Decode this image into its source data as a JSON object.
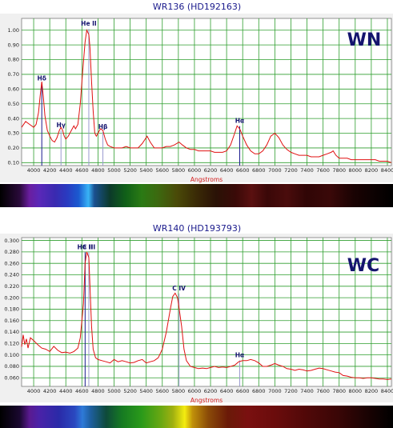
{
  "colors": {
    "grid": "#2e9e2e",
    "spectrum": "#e01010",
    "marker": "#1a1a8c",
    "faint_marker": "#9a9acf",
    "frame": "#f0f0f0"
  },
  "chart_data": [
    {
      "type": "line",
      "title": "WR136 (HD192163)",
      "class_label": "WN",
      "xlabel": "Angstroms",
      "ylabel": "",
      "xlim": [
        3850,
        8450
      ],
      "ylim": [
        0.08,
        1.08
      ],
      "x_ticks": [
        4000,
        4200,
        4400,
        4600,
        4800,
        5000,
        5200,
        5400,
        5600,
        5800,
        6000,
        6200,
        6400,
        6600,
        6800,
        7000,
        7200,
        7400,
        7600,
        7800,
        8000,
        8200,
        8400
      ],
      "y_ticks": [
        0.1,
        0.2,
        0.3,
        0.4,
        0.5,
        0.6,
        0.7,
        0.8,
        0.9,
        1.0
      ],
      "tick_decimals": 2,
      "grid": true,
      "series": [
        {
          "x": [
            3850,
            3900,
            3950,
            4000,
            4030,
            4060,
            4080,
            4101,
            4120,
            4140,
            4170,
            4200,
            4230,
            4260,
            4290,
            4320,
            4340,
            4360,
            4380,
            4400,
            4430,
            4470,
            4500,
            4520,
            4550,
            4580,
            4610,
            4640,
            4660,
            4686,
            4700,
            4720,
            4740,
            4760,
            4780,
            4800,
            4830,
            4861,
            4890,
            4920,
            4950,
            5000,
            5050,
            5100,
            5150,
            5200,
            5250,
            5300,
            5350,
            5411,
            5450,
            5500,
            5550,
            5600,
            5650,
            5700,
            5750,
            5808,
            5850,
            5900,
            5950,
            6000,
            6050,
            6100,
            6150,
            6200,
            6250,
            6300,
            6350,
            6400,
            6450,
            6500,
            6530,
            6563,
            6600,
            6650,
            6700,
            6750,
            6800,
            6850,
            6900,
            6950,
            7000,
            7050,
            7100,
            7150,
            7200,
            7250,
            7300,
            7350,
            7400,
            7450,
            7500,
            7550,
            7600,
            7650,
            7700,
            7725,
            7760,
            7800,
            7850,
            7900,
            7950,
            8000,
            8050,
            8100,
            8150,
            8200,
            8250,
            8300,
            8350,
            8400,
            8450
          ],
          "y": [
            0.34,
            0.38,
            0.36,
            0.34,
            0.36,
            0.44,
            0.55,
            0.65,
            0.55,
            0.42,
            0.32,
            0.28,
            0.25,
            0.24,
            0.27,
            0.32,
            0.34,
            0.32,
            0.28,
            0.26,
            0.28,
            0.32,
            0.35,
            0.33,
            0.36,
            0.5,
            0.72,
            0.92,
            1.0,
            0.97,
            0.88,
            0.65,
            0.45,
            0.3,
            0.28,
            0.3,
            0.33,
            0.32,
            0.26,
            0.22,
            0.21,
            0.2,
            0.2,
            0.2,
            0.21,
            0.2,
            0.2,
            0.2,
            0.23,
            0.28,
            0.24,
            0.2,
            0.2,
            0.2,
            0.21,
            0.21,
            0.22,
            0.24,
            0.22,
            0.2,
            0.19,
            0.19,
            0.18,
            0.18,
            0.18,
            0.18,
            0.17,
            0.17,
            0.17,
            0.18,
            0.22,
            0.3,
            0.35,
            0.33,
            0.28,
            0.22,
            0.18,
            0.16,
            0.16,
            0.18,
            0.22,
            0.28,
            0.3,
            0.27,
            0.22,
            0.19,
            0.17,
            0.16,
            0.15,
            0.15,
            0.15,
            0.14,
            0.14,
            0.14,
            0.15,
            0.16,
            0.17,
            0.18,
            0.15,
            0.13,
            0.13,
            0.13,
            0.12,
            0.12,
            0.12,
            0.12,
            0.12,
            0.12,
            0.12,
            0.11,
            0.11,
            0.11,
            0.1
          ]
        }
      ],
      "line_markers": [
        {
          "label": "Hδ",
          "x": 4101,
          "style": "dark",
          "label_y": 0.66
        },
        {
          "label": "Hγ",
          "x": 4340,
          "style": "faint",
          "label_y": 0.34
        },
        {
          "label": "He II",
          "x": 4686,
          "style": "faint",
          "label_y": 1.03
        },
        {
          "label": "Hβ",
          "x": 4861,
          "style": "faint",
          "label_y": 0.33
        },
        {
          "label": "Hα",
          "x": 6563,
          "style": "dark",
          "label_y": 0.37
        }
      ]
    },
    {
      "type": "line",
      "title": "WR140 (HD193793)",
      "class_label": "WC",
      "xlabel": "Angstroms",
      "ylabel": "",
      "xlim": [
        3850,
        8450
      ],
      "ylim": [
        0.045,
        0.305
      ],
      "x_ticks": [
        4000,
        4200,
        4400,
        4600,
        4800,
        5000,
        5200,
        5400,
        5600,
        5800,
        6000,
        6200,
        6400,
        6600,
        6800,
        7000,
        7200,
        7400,
        7600,
        7800,
        8000,
        8200,
        8400
      ],
      "y_ticks": [
        0.06,
        0.08,
        0.1,
        0.12,
        0.14,
        0.16,
        0.18,
        0.2,
        0.22,
        0.24,
        0.26,
        0.28,
        0.3
      ],
      "tick_decimals": 3,
      "grid": true,
      "series": [
        {
          "x": [
            3850,
            3870,
            3890,
            3910,
            3930,
            3960,
            4000,
            4050,
            4100,
            4150,
            4200,
            4250,
            4300,
            4350,
            4400,
            4450,
            4500,
            4550,
            4580,
            4620,
            4640,
            4660,
            4686,
            4700,
            4720,
            4740,
            4770,
            4800,
            4850,
            4900,
            4950,
            5000,
            5050,
            5100,
            5150,
            5200,
            5250,
            5300,
            5350,
            5400,
            5450,
            5500,
            5550,
            5600,
            5650,
            5700,
            5730,
            5760,
            5790,
            5810,
            5840,
            5870,
            5900,
            5950,
            6000,
            6050,
            6100,
            6150,
            6200,
            6250,
            6300,
            6350,
            6400,
            6450,
            6500,
            6550,
            6600,
            6650,
            6700,
            6750,
            6800,
            6850,
            6900,
            6950,
            7000,
            7050,
            7100,
            7150,
            7200,
            7250,
            7300,
            7350,
            7400,
            7450,
            7500,
            7550,
            7600,
            7650,
            7700,
            7750,
            7800,
            7850,
            7900,
            7950,
            8000,
            8050,
            8100,
            8150,
            8200,
            8250,
            8300,
            8350,
            8400,
            8450
          ],
          "y": [
            0.114,
            0.135,
            0.118,
            0.128,
            0.112,
            0.13,
            0.125,
            0.118,
            0.112,
            0.11,
            0.106,
            0.115,
            0.108,
            0.104,
            0.105,
            0.103,
            0.106,
            0.112,
            0.13,
            0.19,
            0.26,
            0.28,
            0.27,
            0.22,
            0.15,
            0.11,
            0.095,
            0.092,
            0.09,
            0.088,
            0.086,
            0.092,
            0.088,
            0.09,
            0.088,
            0.086,
            0.087,
            0.09,
            0.092,
            0.086,
            0.088,
            0.09,
            0.095,
            0.11,
            0.14,
            0.18,
            0.202,
            0.208,
            0.2,
            0.18,
            0.15,
            0.11,
            0.09,
            0.08,
            0.078,
            0.076,
            0.077,
            0.076,
            0.078,
            0.08,
            0.078,
            0.079,
            0.078,
            0.08,
            0.082,
            0.088,
            0.09,
            0.09,
            0.092,
            0.09,
            0.086,
            0.08,
            0.08,
            0.082,
            0.085,
            0.082,
            0.08,
            0.076,
            0.075,
            0.073,
            0.075,
            0.074,
            0.072,
            0.073,
            0.075,
            0.077,
            0.076,
            0.074,
            0.072,
            0.07,
            0.069,
            0.064,
            0.063,
            0.061,
            0.06,
            0.06,
            0.059,
            0.06,
            0.06,
            0.059,
            0.058,
            0.058,
            0.057,
            0.058
          ]
        }
      ],
      "line_markers": [
        {
          "label": "He II",
          "x": 4640,
          "style": "dark",
          "label_y": 0.285
        },
        {
          "label": "C III",
          "x": 4686,
          "style": "faint",
          "label_y": 0.285
        },
        {
          "label": "C IV",
          "x": 5808,
          "style": "faint",
          "label_y": 0.213
        },
        {
          "label": "Hα",
          "x": 6563,
          "style": "faint",
          "label_y": 0.096
        }
      ]
    }
  ]
}
